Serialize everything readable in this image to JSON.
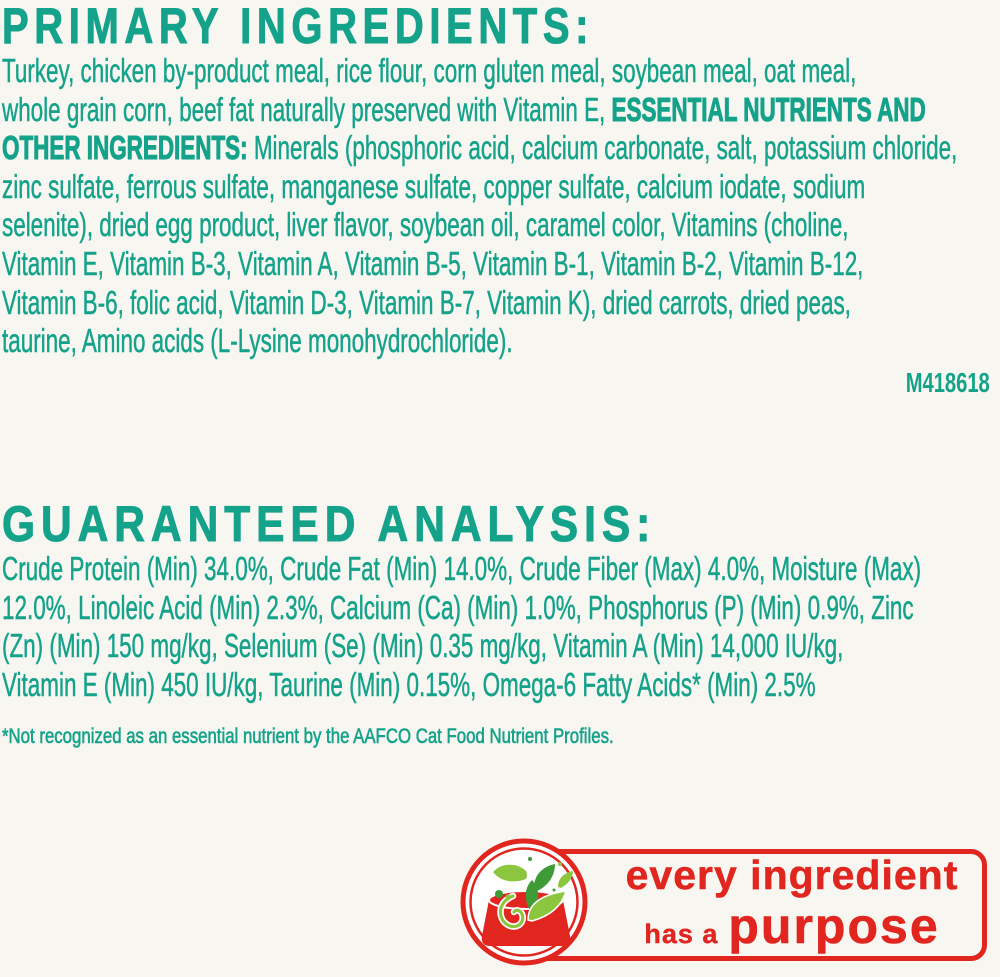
{
  "colors": {
    "teal": "#14a38a",
    "red": "#e1251f",
    "leaf_light": "#8cc63e",
    "leaf_dark": "#3f9b35",
    "background": "#f8f6f1"
  },
  "primary_ingredients": {
    "heading": "PRIMARY INGREDIENTS:",
    "lines": [
      [
        {
          "t": "Turkey, chicken by-product meal, rice flour, corn gluten meal, soybean meal, oat meal,"
        }
      ],
      [
        {
          "t": "whole grain corn, beef fat naturally preserved with Vitamin E, "
        },
        {
          "t": "ESSENTIAL NUTRIENTS AND",
          "b": 1
        }
      ],
      [
        {
          "t": "OTHER INGREDIENTS:",
          "b": 1
        },
        {
          "t": " Minerals (phosphoric acid, calcium carbonate, salt, potassium chloride,"
        }
      ],
      [
        {
          "t": "zinc sulfate, ferrous sulfate, manganese sulfate, copper sulfate, calcium iodate, sodium"
        }
      ],
      [
        {
          "t": "selenite), dried egg product, liver flavor, soybean oil, caramel color, Vitamins (choline,"
        }
      ],
      [
        {
          "t": "Vitamin E, Vitamin B-3, Vitamin A, Vitamin B-5, Vitamin B-1, Vitamin B-2, Vitamin B-12,"
        }
      ],
      [
        {
          "t": "Vitamin B-6, folic acid, Vitamin D-3, Vitamin B-7, Vitamin K), dried carrots, dried peas,"
        }
      ],
      [
        {
          "t": "taurine, Amino acids (L-Lysine monohydrochloride)."
        }
      ]
    ]
  },
  "code": "M418618",
  "guaranteed_analysis": {
    "heading": "GUARANTEED ANALYSIS:",
    "lines": [
      [
        {
          "t": "Crude Protein (Min) 34.0%, Crude Fat (Min) 14.0%, Crude Fiber (Max) 4.0%, Moisture (Max)"
        }
      ],
      [
        {
          "t": "12.0%, Linoleic Acid (Min) 2.3%, Calcium (Ca) (Min) 1.0%, Phosphorus (P) (Min) 0.9%, Zinc"
        }
      ],
      [
        {
          "t": "(Zn) (Min) 150 mg/kg, Selenium (Se) (Min) 0.35 mg/kg, Vitamin A (Min) 14,000 IU/kg,"
        }
      ],
      [
        {
          "t": "Vitamin E (Min) 450 IU/kg, Taurine (Min) 0.15%, Omega-6 Fatty Acids* (Min) 2.5%"
        }
      ]
    ],
    "footnote": "*Not recognized as an essential nutrient by the AAFCO Cat Food Nutrient Profiles."
  },
  "badge": {
    "line1": "every ingredient",
    "line2_small": "has a",
    "line2_large": "purpose",
    "icon": "bowl-with-leaves-icon"
  }
}
